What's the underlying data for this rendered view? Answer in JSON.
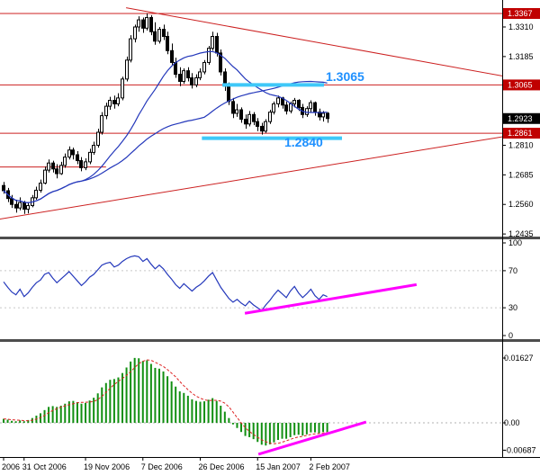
{
  "colors": {
    "level_red": "#cc2020",
    "signal_red": "#dd2222",
    "indicator_blue": "#2438bb",
    "ma_blue": "#2438bb",
    "cyan": "#3fc8f8",
    "magenta": "#ff00ff",
    "green": "#118f11",
    "badge_red": "#c00000",
    "badge_black": "#000000",
    "label_blue": "#1e90ff",
    "axis_black": "#000000",
    "grid_gray": "#c8c8c8"
  },
  "chart_data": {
    "type": "candlestick",
    "x_axis": {
      "labels": [
        {
          "index": 0,
          "text": "2006"
        },
        {
          "index": 5,
          "text": "31 Oct 2006"
        },
        {
          "index": 20,
          "text": "19 Nov 2006"
        },
        {
          "index": 34,
          "text": "7 Dec 2006"
        },
        {
          "index": 48,
          "text": "26 Dec 2006"
        },
        {
          "index": 62,
          "text": "15 Jan 2007"
        },
        {
          "index": 75,
          "text": "2 Feb 2007"
        }
      ]
    },
    "main_panel": {
      "price_range": [
        1.2424,
        1.3424
      ],
      "ticks": [
        1.331,
        1.3185,
        1.281,
        1.2685,
        1.256,
        1.2435
      ],
      "badges": [
        {
          "price": 1.3367,
          "label": "1.3367",
          "type": "level"
        },
        {
          "price": 1.3065,
          "label": "1.3065",
          "type": "level"
        },
        {
          "price": 1.2923,
          "label": "1.2923",
          "type": "current"
        },
        {
          "price": 1.2861,
          "label": "1.2861",
          "type": "level"
        }
      ],
      "horizontal_lines": [
        {
          "price": 1.3367
        },
        {
          "price": 1.3065
        },
        {
          "price": 1.2861
        },
        {
          "price": 1.2718,
          "i1": -1,
          "i2": 25
        }
      ],
      "trend_lines": [
        {
          "i1": 29.9,
          "p1": 1.3391,
          "i2": 131,
          "p2": 1.3074
        },
        {
          "i1": -1,
          "p1": 1.2498,
          "i2": 131,
          "p2": 1.2872
        }
      ],
      "highlight_lines": [
        {
          "price": 1.3065,
          "i1": 53.4,
          "i2": 78.2,
          "label": "1.3065"
        },
        {
          "price": 1.284,
          "i1": 48.4,
          "i2": 82.6,
          "label": "1.2840"
        }
      ],
      "moving_averages": [
        {
          "period": 20,
          "color": "#2438bb"
        },
        {
          "period": 50,
          "color": "#2438bb"
        }
      ],
      "candles": [
        [
          1.264,
          1.2655,
          1.2605,
          1.2618
        ],
        [
          1.2618,
          1.263,
          1.257,
          1.2585
        ],
        [
          1.2585,
          1.26,
          1.2545,
          1.256
        ],
        [
          1.256,
          1.258,
          1.2525,
          1.2545
        ],
        [
          1.2545,
          1.259,
          1.2535,
          1.2568
        ],
        [
          1.2568,
          1.2575,
          1.252,
          1.254
        ],
        [
          1.254,
          1.257,
          1.2522,
          1.2555
        ],
        [
          1.2555,
          1.26,
          1.2548,
          1.2588
        ],
        [
          1.2588,
          1.2635,
          1.258,
          1.262
        ],
        [
          1.262,
          1.2665,
          1.261,
          1.265
        ],
        [
          1.265,
          1.272,
          1.2645,
          1.2705
        ],
        [
          1.2705,
          1.275,
          1.2695,
          1.2735
        ],
        [
          1.2735,
          1.2745,
          1.2695,
          1.271
        ],
        [
          1.271,
          1.273,
          1.267,
          1.269
        ],
        [
          1.269,
          1.274,
          1.2685,
          1.2725
        ],
        [
          1.2725,
          1.2775,
          1.2715,
          1.276
        ],
        [
          1.276,
          1.2805,
          1.275,
          1.279
        ],
        [
          1.279,
          1.28,
          1.275,
          1.277
        ],
        [
          1.277,
          1.2785,
          1.273,
          1.2745
        ],
        [
          1.2745,
          1.276,
          1.27,
          1.2715
        ],
        [
          1.2715,
          1.2755,
          1.2705,
          1.274
        ],
        [
          1.274,
          1.2795,
          1.273,
          1.278
        ],
        [
          1.278,
          1.2825,
          1.277,
          1.281
        ],
        [
          1.281,
          1.288,
          1.28,
          1.2865
        ],
        [
          1.2865,
          1.295,
          1.2855,
          1.2935
        ],
        [
          1.2935,
          1.299,
          1.292,
          1.2975
        ],
        [
          1.2975,
          1.3015,
          1.296,
          1.3
        ],
        [
          1.3,
          1.302,
          1.2965,
          1.2985
        ],
        [
          1.2985,
          1.303,
          1.2975,
          1.301
        ],
        [
          1.301,
          1.31,
          1.3,
          1.309
        ],
        [
          1.309,
          1.3185,
          1.308,
          1.317
        ],
        [
          1.317,
          1.3275,
          1.316,
          1.326
        ],
        [
          1.326,
          1.332,
          1.3245,
          1.331
        ],
        [
          1.331,
          1.3355,
          1.329,
          1.334
        ],
        [
          1.334,
          1.335,
          1.3285,
          1.3305
        ],
        [
          1.3305,
          1.3367,
          1.3295,
          1.335
        ],
        [
          1.335,
          1.336,
          1.3275,
          1.329
        ],
        [
          1.329,
          1.333,
          1.3235,
          1.325
        ],
        [
          1.325,
          1.331,
          1.324,
          1.33
        ],
        [
          1.33,
          1.332,
          1.3255,
          1.327
        ],
        [
          1.327,
          1.329,
          1.3195,
          1.321
        ],
        [
          1.321,
          1.324,
          1.3145,
          1.316
        ],
        [
          1.316,
          1.318,
          1.3095,
          1.311
        ],
        [
          1.311,
          1.314,
          1.306,
          1.308
        ],
        [
          1.308,
          1.3135,
          1.307,
          1.3125
        ],
        [
          1.3125,
          1.314,
          1.308,
          1.3095
        ],
        [
          1.3095,
          1.3115,
          1.305,
          1.3065
        ],
        [
          1.3065,
          1.311,
          1.3055,
          1.3095
        ],
        [
          1.3095,
          1.3135,
          1.3085,
          1.312
        ],
        [
          1.312,
          1.317,
          1.311,
          1.316
        ],
        [
          1.316,
          1.323,
          1.315,
          1.322
        ],
        [
          1.322,
          1.329,
          1.321,
          1.327
        ],
        [
          1.327,
          1.3285,
          1.3185,
          1.32
        ],
        [
          1.32,
          1.3215,
          1.3105,
          1.312
        ],
        [
          1.312,
          1.3135,
          1.304,
          1.306
        ],
        [
          1.306,
          1.3075,
          1.298,
          1.2995
        ],
        [
          1.2995,
          1.301,
          1.2925,
          1.2945
        ],
        [
          1.2945,
          1.2985,
          1.293,
          1.296
        ],
        [
          1.296,
          1.297,
          1.2905,
          1.292
        ],
        [
          1.292,
          1.294,
          1.288,
          1.29
        ],
        [
          1.29,
          1.2955,
          1.289,
          1.294
        ],
        [
          1.294,
          1.295,
          1.2895,
          1.291
        ],
        [
          1.291,
          1.2925,
          1.287,
          1.289
        ],
        [
          1.289,
          1.2905,
          1.2855,
          1.287
        ],
        [
          1.287,
          1.292,
          1.2862,
          1.291
        ],
        [
          1.291,
          1.296,
          1.29,
          1.295
        ],
        [
          1.295,
          1.2995,
          1.294,
          1.2985
        ],
        [
          1.2985,
          1.302,
          1.297,
          1.301
        ],
        [
          1.301,
          1.3015,
          1.2965,
          1.298
        ],
        [
          1.298,
          1.2995,
          1.294,
          1.2955
        ],
        [
          1.2955,
          1.2995,
          1.2945,
          1.2985
        ],
        [
          1.2985,
          1.301,
          1.297,
          1.3
        ],
        [
          1.3,
          1.3005,
          1.2955,
          1.297
        ],
        [
          1.297,
          1.2985,
          1.2925,
          1.294
        ],
        [
          1.294,
          1.2975,
          1.293,
          1.2965
        ],
        [
          1.2965,
          1.3,
          1.295,
          1.299
        ],
        [
          1.299,
          1.2995,
          1.2935,
          1.295
        ],
        [
          1.295,
          1.2965,
          1.2915,
          1.293
        ],
        [
          1.293,
          1.2955,
          1.291,
          1.2945
        ],
        [
          1.2945,
          1.295,
          1.2905,
          1.2923
        ]
      ]
    },
    "oscillator_panel": {
      "range": [
        0,
        100
      ],
      "ticks": [
        100,
        70,
        30,
        0
      ],
      "values": [
        58,
        52,
        47,
        44,
        50,
        42,
        46,
        52,
        57,
        60,
        66,
        68,
        62,
        57,
        61,
        65,
        69,
        64,
        59,
        54,
        58,
        63,
        66,
        71,
        76,
        78,
        79,
        74,
        76,
        80,
        83,
        85,
        86,
        85,
        80,
        83,
        77,
        72,
        76,
        72,
        66,
        61,
        55,
        51,
        56,
        52,
        48,
        52,
        55,
        59,
        64,
        68,
        60,
        52,
        46,
        40,
        36,
        39,
        35,
        32,
        37,
        33,
        30,
        27,
        33,
        38,
        44,
        49,
        45,
        41,
        48,
        53,
        46,
        41,
        45,
        50,
        43,
        39,
        44,
        42
      ],
      "trend_line": {
        "i1": 58.9,
        "v1": 24,
        "i2": 100.8,
        "v2": 55
      }
    },
    "macd_panel": {
      "ticks": [
        0.01627,
        0,
        -0.00687
      ],
      "tick_labels": [
        "0.01627",
        "0.00",
        "-0.00687"
      ],
      "histogram": [
        0.001,
        0.0008,
        0.0005,
        0.0004,
        0.0006,
        0.0004,
        0.0007,
        0.0012,
        0.0018,
        0.0024,
        0.0032,
        0.004,
        0.0042,
        0.004,
        0.0043,
        0.0048,
        0.0054,
        0.0055,
        0.0052,
        0.0048,
        0.005,
        0.0056,
        0.0063,
        0.0074,
        0.0089,
        0.01,
        0.0108,
        0.011,
        0.0114,
        0.0125,
        0.0139,
        0.0154,
        0.0163,
        0.0162,
        0.0155,
        0.0157,
        0.0148,
        0.0138,
        0.0136,
        0.0129,
        0.0117,
        0.0104,
        0.0091,
        0.0079,
        0.0075,
        0.0068,
        0.0059,
        0.0055,
        0.0053,
        0.0054,
        0.0058,
        0.0062,
        0.0055,
        0.0043,
        0.0028,
        0.0012,
        -0.0004,
        -0.0013,
        -0.0023,
        -0.0033,
        -0.0036,
        -0.0041,
        -0.0048,
        -0.0055,
        -0.0057,
        -0.0054,
        -0.0049,
        -0.0043,
        -0.004,
        -0.004,
        -0.0036,
        -0.0031,
        -0.003,
        -0.0032,
        -0.0029,
        -0.0024,
        -0.0024,
        -0.0026,
        -0.0023,
        -0.0023
      ],
      "trend_line": {
        "i1": 62.2,
        "v1": -0.0079,
        "i2": 88.5,
        "v2": 0.0002
      }
    }
  }
}
